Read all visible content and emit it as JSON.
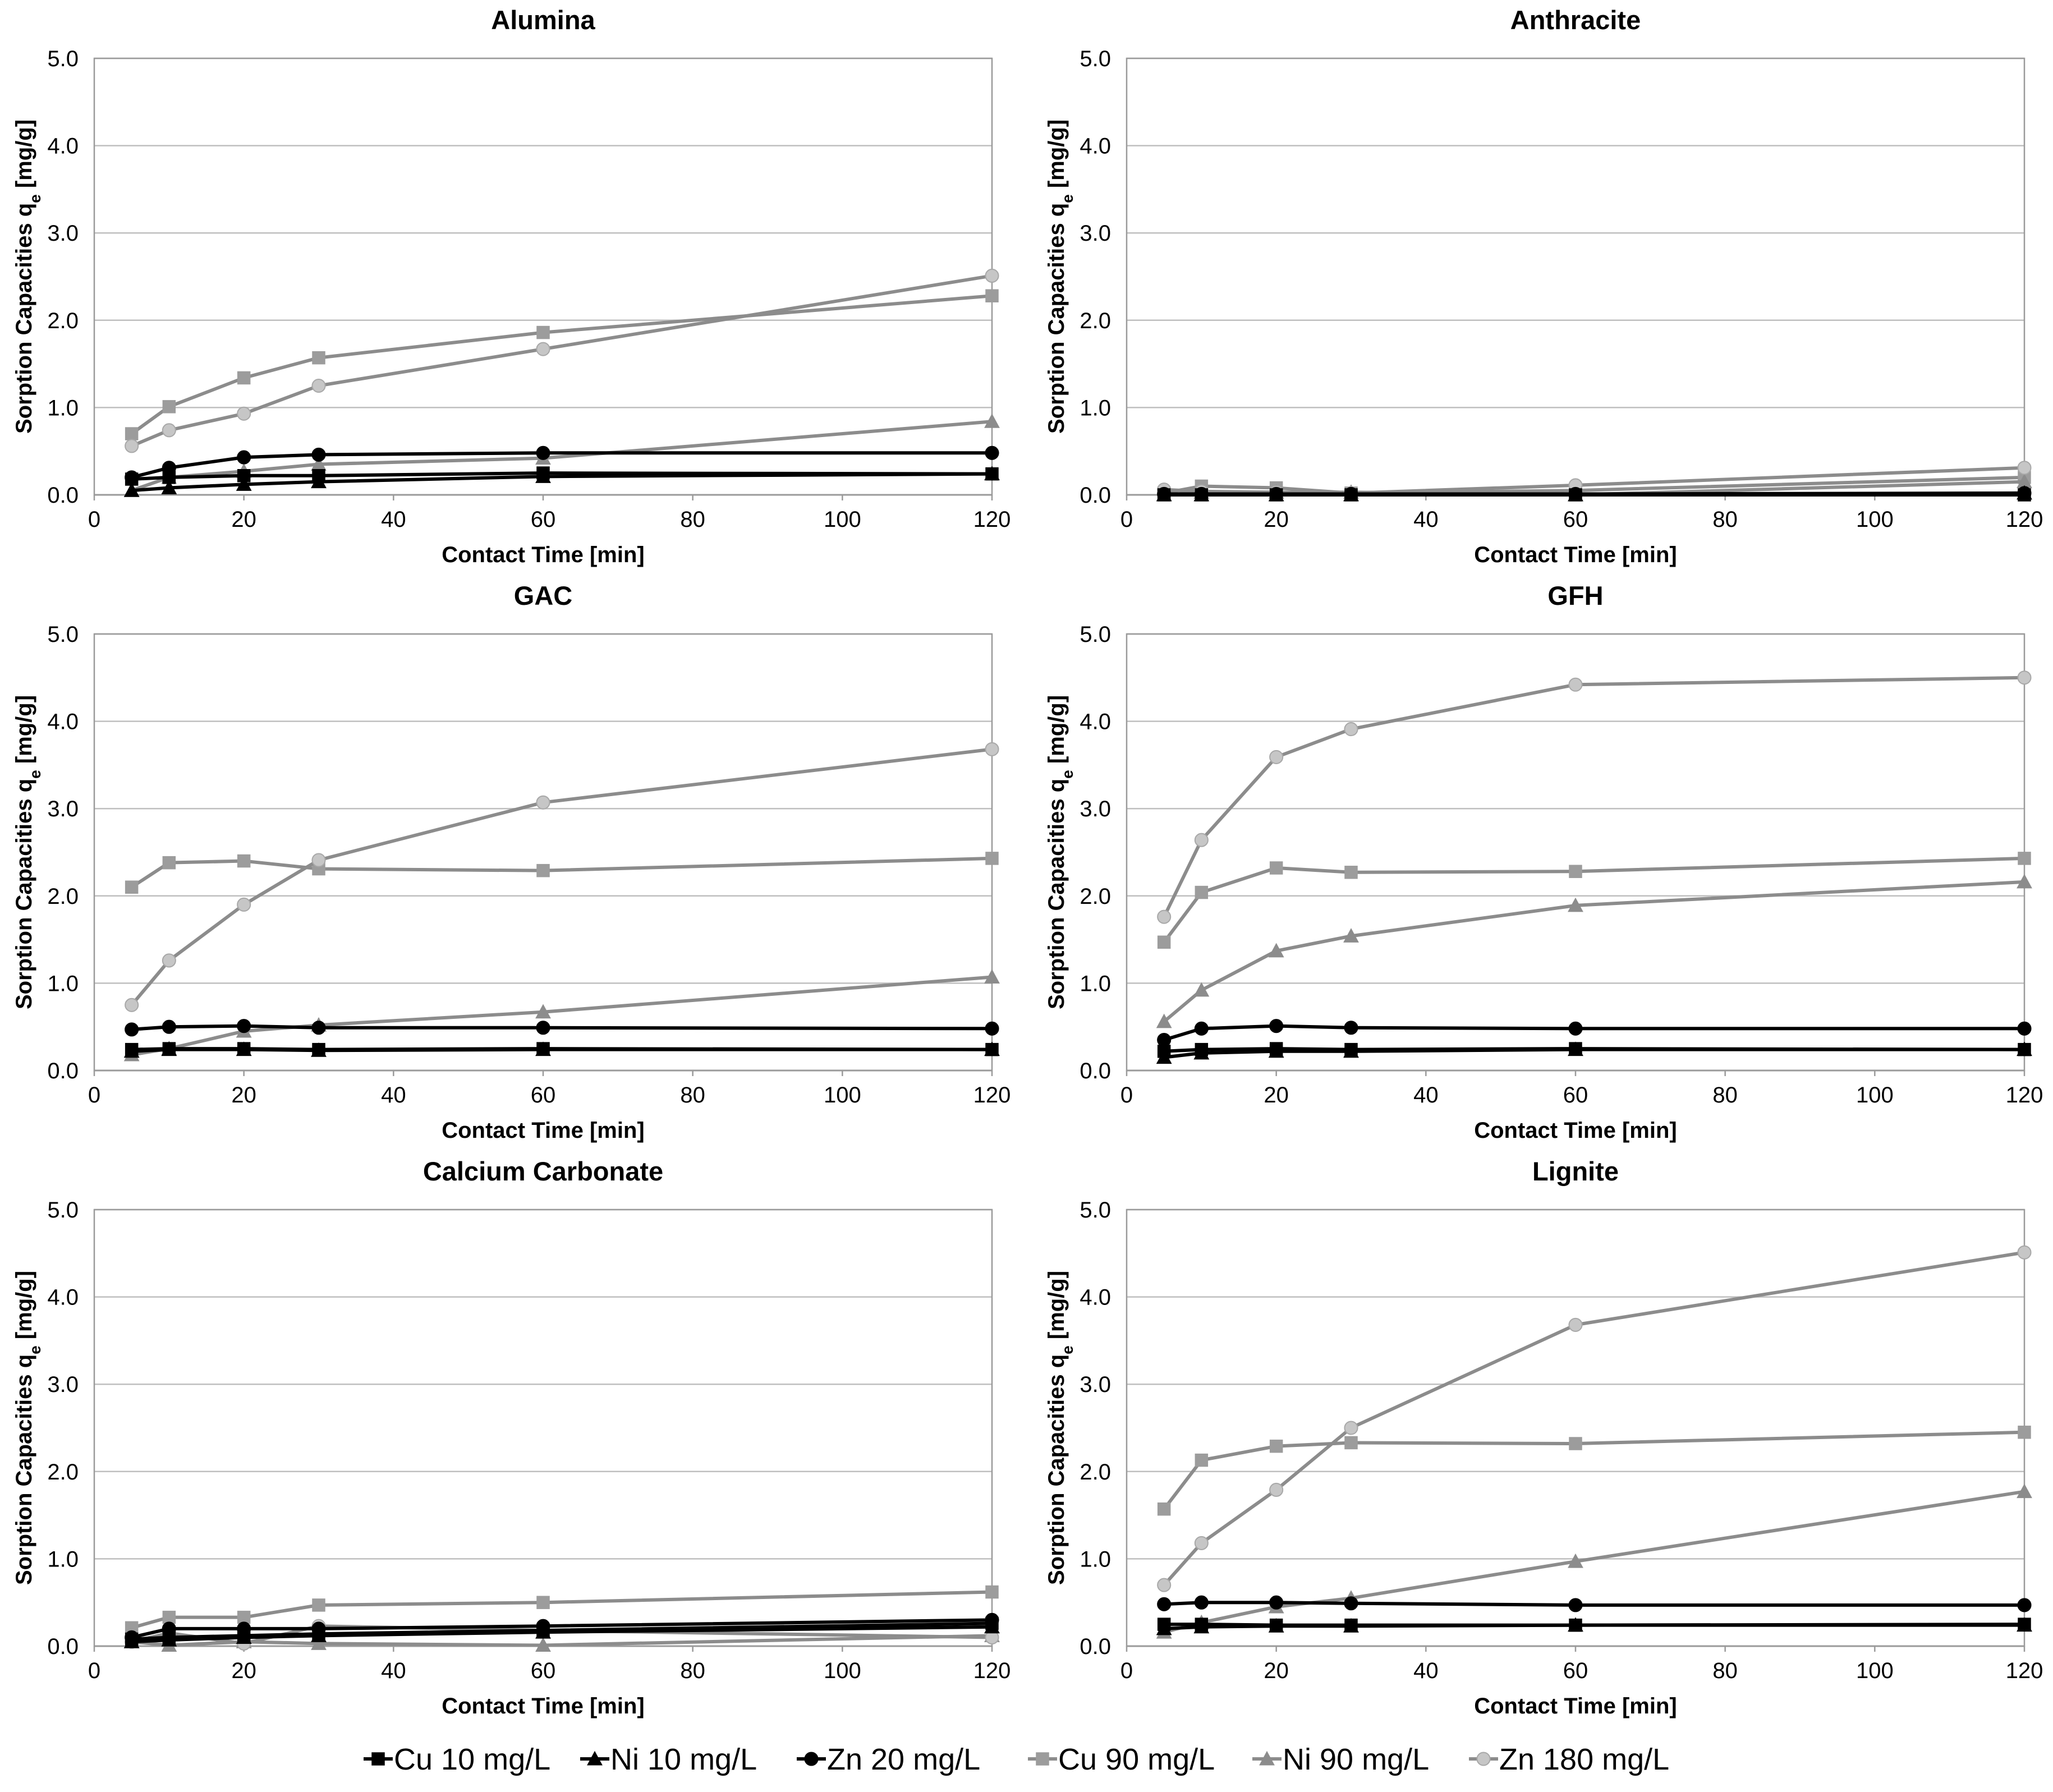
{
  "colors": {
    "black": "#000000",
    "gray_line": "#8c8c8c",
    "gray_square": "#9c9c9c",
    "gray_triangle": "#8c8c8c",
    "gray_circle": "#c6c6c6"
  },
  "legend": [
    {
      "label": "Cu 10 mg/L",
      "marker": "square",
      "tone": "black"
    },
    {
      "label": "Ni 10 mg/L",
      "marker": "triangle",
      "tone": "black"
    },
    {
      "label": "Zn 20 mg/L",
      "marker": "circle",
      "tone": "black"
    },
    {
      "label": "Cu 90 mg/L",
      "marker": "square",
      "tone": "gray"
    },
    {
      "label": "Ni 90 mg/L",
      "marker": "triangle",
      "tone": "gray"
    },
    {
      "label": "Zn 180 mg/L",
      "marker": "circle",
      "tone": "gray"
    }
  ],
  "chart_data": [
    {
      "type": "line",
      "title": "Alumina",
      "xlabel": "Contact Time [min]",
      "ylabel": "Sorption Capacities q",
      "ylabel_sub": "e",
      "ylabel_unit": " [mg/g]",
      "x": [
        5,
        10,
        20,
        30,
        60,
        120
      ],
      "xlim": [
        0,
        120
      ],
      "ylim": [
        0,
        5
      ],
      "xticks": [
        "0",
        "20",
        "40",
        "60",
        "80",
        "100",
        "120"
      ],
      "yticks": [
        "0.0",
        "1.0",
        "2.0",
        "3.0",
        "4.0",
        "5.0"
      ],
      "grid": true,
      "series": [
        {
          "name": "Cu 10 mg/L",
          "values": [
            0.18,
            0.2,
            0.22,
            0.22,
            0.25,
            0.24
          ]
        },
        {
          "name": "Ni 10 mg/L",
          "values": [
            0.05,
            0.08,
            0.12,
            0.15,
            0.21,
            0.24
          ]
        },
        {
          "name": "Zn 20 mg/L",
          "values": [
            0.2,
            0.31,
            0.43,
            0.46,
            0.48,
            0.48
          ]
        },
        {
          "name": "Cu 90 mg/L",
          "values": [
            0.7,
            1.01,
            1.34,
            1.57,
            1.86,
            2.28
          ]
        },
        {
          "name": "Ni 90 mg/L",
          "values": [
            0.05,
            0.2,
            0.27,
            0.35,
            0.42,
            0.84
          ]
        },
        {
          "name": "Zn 180 mg/L",
          "values": [
            0.56,
            0.74,
            0.93,
            1.25,
            1.67,
            2.51
          ]
        }
      ]
    },
    {
      "type": "line",
      "title": "Anthracite",
      "xlabel": "Contact Time [min]",
      "ylabel": "Sorption Capacities q",
      "ylabel_sub": "e",
      "ylabel_unit": " [mg/g]",
      "x": [
        5,
        10,
        20,
        30,
        60,
        120
      ],
      "xlim": [
        0,
        120
      ],
      "ylim": [
        0,
        5
      ],
      "xticks": [
        "0",
        "20",
        "40",
        "60",
        "80",
        "100",
        "120"
      ],
      "yticks": [
        "0.0",
        "1.0",
        "2.0",
        "3.0",
        "4.0",
        "5.0"
      ],
      "grid": true,
      "series": [
        {
          "name": "Cu 10 mg/L",
          "values": [
            0.0,
            0.0,
            0.0,
            0.0,
            0.0,
            0.0
          ]
        },
        {
          "name": "Ni 10 mg/L",
          "values": [
            0.0,
            0.0,
            0.0,
            0.0,
            0.0,
            0.02
          ]
        },
        {
          "name": "Zn 20 mg/L",
          "values": [
            0.01,
            0.01,
            0.01,
            0.01,
            0.01,
            0.02
          ]
        },
        {
          "name": "Cu 90 mg/L",
          "values": [
            0.02,
            0.1,
            0.08,
            0.02,
            0.05,
            0.2
          ]
        },
        {
          "name": "Ni 90 mg/L",
          "values": [
            0.0,
            0.03,
            0.03,
            0.03,
            0.0,
            0.15
          ]
        },
        {
          "name": "Zn 180 mg/L",
          "values": [
            0.06,
            0.04,
            0.03,
            0.02,
            0.11,
            0.31
          ]
        }
      ]
    },
    {
      "type": "line",
      "title": "GAC",
      "xlabel": "Contact Time [min]",
      "ylabel": "Sorption Capacities q",
      "ylabel_sub": "e",
      "ylabel_unit": " [mg/g]",
      "x": [
        5,
        10,
        20,
        30,
        60,
        120
      ],
      "xlim": [
        0,
        120
      ],
      "ylim": [
        0,
        5
      ],
      "xticks": [
        "0",
        "20",
        "40",
        "60",
        "80",
        "100",
        "120"
      ],
      "yticks": [
        "0.0",
        "1.0",
        "2.0",
        "3.0",
        "4.0",
        "5.0"
      ],
      "grid": true,
      "series": [
        {
          "name": "Cu 10 mg/L",
          "values": [
            0.24,
            0.25,
            0.25,
            0.24,
            0.25,
            0.24
          ]
        },
        {
          "name": "Ni 10 mg/L",
          "values": [
            0.22,
            0.24,
            0.24,
            0.23,
            0.24,
            0.24
          ]
        },
        {
          "name": "Zn 20 mg/L",
          "values": [
            0.47,
            0.5,
            0.51,
            0.49,
            0.49,
            0.48
          ]
        },
        {
          "name": "Cu 90 mg/L",
          "values": [
            2.1,
            2.38,
            2.4,
            2.31,
            2.29,
            2.43
          ]
        },
        {
          "name": "Ni 90 mg/L",
          "values": [
            0.18,
            0.25,
            0.45,
            0.52,
            0.67,
            1.07
          ]
        },
        {
          "name": "Zn 180 mg/L",
          "values": [
            0.75,
            1.26,
            1.9,
            2.41,
            3.07,
            3.68
          ]
        }
      ]
    },
    {
      "type": "line",
      "title": "GFH",
      "xlabel": "Contact Time [min]",
      "ylabel": "Sorption Capacities q",
      "ylabel_sub": "e",
      "ylabel_unit": " [mg/g]",
      "x": [
        5,
        10,
        20,
        30,
        60,
        120
      ],
      "xlim": [
        0,
        120
      ],
      "ylim": [
        0,
        5
      ],
      "xticks": [
        "0",
        "20",
        "40",
        "60",
        "80",
        "100",
        "120"
      ],
      "yticks": [
        "0.0",
        "1.0",
        "2.0",
        "3.0",
        "4.0",
        "5.0"
      ],
      "grid": true,
      "series": [
        {
          "name": "Cu 10 mg/L",
          "values": [
            0.22,
            0.24,
            0.25,
            0.24,
            0.25,
            0.24
          ]
        },
        {
          "name": "Ni 10 mg/L",
          "values": [
            0.15,
            0.2,
            0.22,
            0.22,
            0.24,
            0.24
          ]
        },
        {
          "name": "Zn 20 mg/L",
          "values": [
            0.35,
            0.48,
            0.51,
            0.49,
            0.48,
            0.48
          ]
        },
        {
          "name": "Cu 90 mg/L",
          "values": [
            1.47,
            2.04,
            2.32,
            2.27,
            2.28,
            2.43
          ]
        },
        {
          "name": "Ni 90 mg/L",
          "values": [
            0.56,
            0.92,
            1.37,
            1.54,
            1.89,
            2.16
          ]
        },
        {
          "name": "Zn 180 mg/L",
          "values": [
            1.76,
            2.64,
            3.59,
            3.91,
            4.42,
            4.5
          ]
        }
      ]
    },
    {
      "type": "line",
      "title": "Calcium Carbonate",
      "xlabel": "Contact Time [min]",
      "ylabel": "Sorption Capacities q",
      "ylabel_sub": "e",
      "ylabel_unit": " [mg/g]",
      "x": [
        5,
        10,
        20,
        30,
        60,
        120
      ],
      "xlim": [
        0,
        120
      ],
      "ylim": [
        0,
        5
      ],
      "xticks": [
        "0",
        "20",
        "40",
        "60",
        "80",
        "100",
        "120"
      ],
      "yticks": [
        "0.0",
        "1.0",
        "2.0",
        "3.0",
        "4.0",
        "5.0"
      ],
      "grid": true,
      "series": [
        {
          "name": "Cu 10 mg/L",
          "values": [
            0.08,
            0.1,
            0.12,
            0.14,
            0.18,
            0.26
          ]
        },
        {
          "name": "Ni 10 mg/L",
          "values": [
            0.05,
            0.07,
            0.1,
            0.12,
            0.16,
            0.22
          ]
        },
        {
          "name": "Zn 20 mg/L",
          "values": [
            0.1,
            0.2,
            0.2,
            0.2,
            0.23,
            0.3
          ]
        },
        {
          "name": "Cu 90 mg/L",
          "values": [
            0.21,
            0.33,
            0.33,
            0.47,
            0.5,
            0.62
          ]
        },
        {
          "name": "Ni 90 mg/L",
          "values": [
            0.05,
            0.01,
            0.05,
            0.03,
            0.01,
            0.12
          ]
        },
        {
          "name": "Zn 180 mg/L",
          "values": [
            0.05,
            0.15,
            0.03,
            0.23,
            0.18,
            0.1
          ]
        }
      ]
    },
    {
      "type": "line",
      "title": "Lignite",
      "xlabel": "Contact Time [min]",
      "ylabel": "Sorption Capacities q",
      "ylabel_sub": "e",
      "ylabel_unit": " [mg/g]",
      "x": [
        5,
        10,
        20,
        30,
        60,
        120
      ],
      "xlim": [
        0,
        120
      ],
      "ylim": [
        0,
        5
      ],
      "xticks": [
        "0",
        "20",
        "40",
        "60",
        "80",
        "100",
        "120"
      ],
      "yticks": [
        "0.0",
        "1.0",
        "2.0",
        "3.0",
        "4.0",
        "5.0"
      ],
      "grid": true,
      "series": [
        {
          "name": "Cu 10 mg/L",
          "values": [
            0.25,
            0.25,
            0.24,
            0.24,
            0.24,
            0.25
          ]
        },
        {
          "name": "Ni 10 mg/L",
          "values": [
            0.2,
            0.22,
            0.23,
            0.23,
            0.24,
            0.24
          ]
        },
        {
          "name": "Zn 20 mg/L",
          "values": [
            0.48,
            0.5,
            0.5,
            0.49,
            0.47,
            0.47
          ]
        },
        {
          "name": "Cu 90 mg/L",
          "values": [
            1.57,
            2.13,
            2.29,
            2.33,
            2.32,
            2.45
          ]
        },
        {
          "name": "Ni 90 mg/L",
          "values": [
            0.16,
            0.27,
            0.45,
            0.55,
            0.97,
            1.77
          ]
        },
        {
          "name": "Zn 180 mg/L",
          "values": [
            0.7,
            1.18,
            1.79,
            2.5,
            3.68,
            4.51
          ]
        }
      ]
    }
  ]
}
